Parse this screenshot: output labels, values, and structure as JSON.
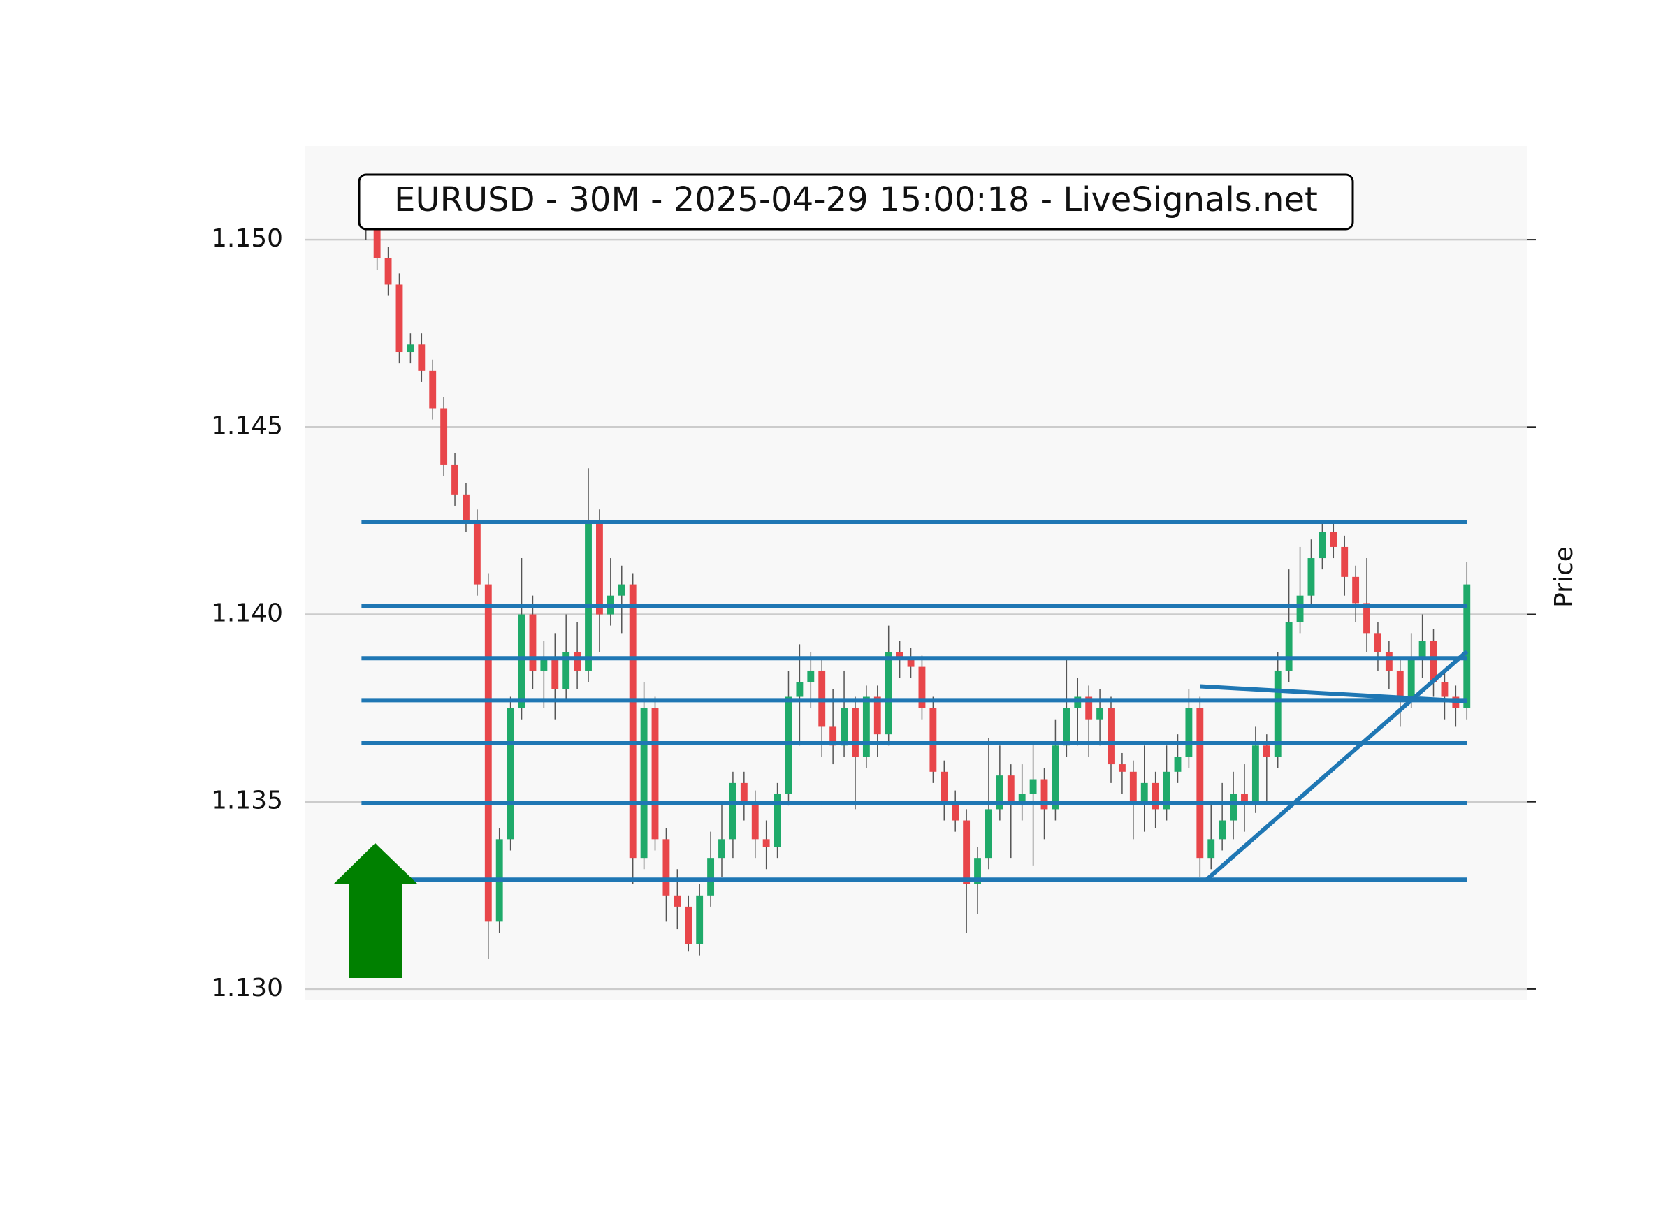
{
  "chart_data": {
    "type": "candlestick",
    "title": "EURUSD - 30M - 2025-04-29 15:00:18 - LiveSignals.net",
    "y_label": "Price",
    "xlim": [
      -5.45,
      104.45
    ],
    "ylim": [
      1.1297,
      1.1525
    ],
    "yticks": [
      {
        "value": 1.13,
        "label": "1.130"
      },
      1.135,
      {
        "value": 1.14,
        "label": "1.140"
      },
      1.145,
      {
        "value": 1.15,
        "label": "1.150"
      }
    ],
    "grid": true,
    "up_color": "#1faa6a",
    "down_color": "#e8464a",
    "open": [
      1.1505,
      1.1503,
      1.1495,
      1.1488,
      1.147,
      1.1472,
      1.1465,
      1.1455,
      1.144,
      1.1432,
      1.1425,
      1.1408,
      1.1318,
      1.134,
      1.1375,
      1.14,
      1.1385,
      1.1388,
      1.138,
      1.139,
      1.1385,
      1.1425,
      1.14,
      1.1405,
      1.1408,
      1.1335,
      1.1375,
      1.134,
      1.1325,
      1.1322,
      1.1312,
      1.1325,
      1.1335,
      1.134,
      1.1355,
      1.135,
      1.134,
      1.1338,
      1.1352,
      1.1378,
      1.1382,
      1.1385,
      1.137,
      1.1365,
      1.1375,
      1.1362,
      1.1378,
      1.1368,
      1.139,
      1.1388,
      1.1386,
      1.1375,
      1.1358,
      1.135,
      1.1345,
      1.1328,
      1.1335,
      1.1348,
      1.1357,
      1.135,
      1.1352,
      1.1356,
      1.1348,
      1.1365,
      1.1375,
      1.1378,
      1.1372,
      1.1375,
      1.136,
      1.1358,
      1.135,
      1.1355,
      1.1348,
      1.1358,
      1.1362,
      1.1375,
      1.1335,
      1.134,
      1.1345,
      1.1352,
      1.135,
      1.1365,
      1.1362,
      1.1385,
      1.1398,
      1.1405,
      1.1415,
      1.1422,
      1.1418,
      1.141,
      1.1403,
      1.1395,
      1.139,
      1.1385,
      1.1378,
      1.1388,
      1.1393,
      1.1382,
      1.1378,
      1.1375
    ],
    "high": [
      1.1508,
      1.1506,
      1.1498,
      1.1491,
      1.1475,
      1.1475,
      1.1468,
      1.1458,
      1.1443,
      1.1435,
      1.1428,
      1.1411,
      1.1343,
      1.1378,
      1.1415,
      1.1405,
      1.1393,
      1.1395,
      1.14,
      1.1398,
      1.1439,
      1.1428,
      1.1415,
      1.1413,
      1.1411,
      1.1382,
      1.1378,
      1.1343,
      1.1332,
      1.1325,
      1.1328,
      1.1342,
      1.135,
      1.1358,
      1.1358,
      1.1353,
      1.1345,
      1.1355,
      1.1385,
      1.1392,
      1.139,
      1.1388,
      1.138,
      1.1385,
      1.1378,
      1.1381,
      1.1381,
      1.1397,
      1.1393,
      1.1391,
      1.1389,
      1.1378,
      1.1361,
      1.1353,
      1.1348,
      1.1338,
      1.1367,
      1.1365,
      1.136,
      1.136,
      1.1366,
      1.1359,
      1.1372,
      1.1388,
      1.1383,
      1.1381,
      1.138,
      1.1378,
      1.1363,
      1.1361,
      1.1365,
      1.1358,
      1.1365,
      1.1368,
      1.138,
      1.1378,
      1.135,
      1.1355,
      1.1358,
      1.136,
      1.137,
      1.1368,
      1.139,
      1.1412,
      1.1418,
      1.142,
      1.1425,
      1.1425,
      1.1421,
      1.1413,
      1.1415,
      1.1398,
      1.1393,
      1.1388,
      1.1395,
      1.14,
      1.1396,
      1.1385,
      1.1381,
      1.1414
    ],
    "low": [
      1.15,
      1.1492,
      1.1485,
      1.1467,
      1.1467,
      1.1462,
      1.1452,
      1.1437,
      1.1429,
      1.1422,
      1.1405,
      1.1308,
      1.1315,
      1.1337,
      1.1372,
      1.138,
      1.1375,
      1.1372,
      1.1377,
      1.138,
      1.1382,
      1.139,
      1.1397,
      1.1395,
      1.1328,
      1.1332,
      1.1337,
      1.1318,
      1.1316,
      1.131,
      1.1309,
      1.1322,
      1.133,
      1.1335,
      1.1345,
      1.1335,
      1.1332,
      1.1335,
      1.1349,
      1.1365,
      1.1375,
      1.1362,
      1.136,
      1.1362,
      1.1348,
      1.1359,
      1.1362,
      1.1365,
      1.1383,
      1.1383,
      1.1372,
      1.1355,
      1.1345,
      1.1342,
      1.1315,
      1.132,
      1.1332,
      1.1345,
      1.1335,
      1.1345,
      1.1333,
      1.134,
      1.1345,
      1.1362,
      1.1365,
      1.1362,
      1.1365,
      1.1355,
      1.1352,
      1.134,
      1.1342,
      1.1343,
      1.1345,
      1.1355,
      1.1359,
      1.133,
      1.1332,
      1.1337,
      1.134,
      1.1342,
      1.1347,
      1.135,
      1.1359,
      1.1382,
      1.1395,
      1.1402,
      1.1412,
      1.1415,
      1.1405,
      1.1398,
      1.139,
      1.1385,
      1.138,
      1.137,
      1.1375,
      1.1383,
      1.1378,
      1.1372,
      1.137,
      1.1372
    ],
    "close": [
      1.1503,
      1.1495,
      1.1488,
      1.147,
      1.1472,
      1.1465,
      1.1455,
      1.144,
      1.1432,
      1.1425,
      1.1408,
      1.1318,
      1.134,
      1.1375,
      1.14,
      1.1385,
      1.1388,
      1.138,
      1.139,
      1.1385,
      1.1425,
      1.14,
      1.1405,
      1.1408,
      1.1335,
      1.1375,
      1.134,
      1.1325,
      1.1322,
      1.1312,
      1.1325,
      1.1335,
      1.134,
      1.1355,
      1.135,
      1.134,
      1.1338,
      1.1352,
      1.1378,
      1.1382,
      1.1385,
      1.137,
      1.1365,
      1.1375,
      1.1362,
      1.1378,
      1.1368,
      1.139,
      1.1388,
      1.1386,
      1.1375,
      1.1358,
      1.135,
      1.1345,
      1.1328,
      1.1335,
      1.1348,
      1.1357,
      1.135,
      1.1352,
      1.1356,
      1.1348,
      1.1365,
      1.1375,
      1.1378,
      1.1372,
      1.1375,
      1.136,
      1.1358,
      1.135,
      1.1355,
      1.1348,
      1.1358,
      1.1362,
      1.1375,
      1.1335,
      1.134,
      1.1345,
      1.1352,
      1.135,
      1.1365,
      1.1362,
      1.1385,
      1.1398,
      1.1405,
      1.1415,
      1.1422,
      1.1418,
      1.141,
      1.1403,
      1.1395,
      1.139,
      1.1385,
      1.1378,
      1.1388,
      1.1393,
      1.1382,
      1.1378,
      1.1375,
      1.1408
    ],
    "line_color": "#1f77b4",
    "levels": [
      {
        "y": 1.14247,
        "x": [
          -0.4,
          99
        ]
      },
      {
        "y": 1.14022,
        "x": [
          -0.4,
          99
        ]
      },
      {
        "y": 1.13883,
        "x": [
          -0.4,
          99
        ]
      },
      {
        "y": 1.13771,
        "x": [
          -0.4,
          99
        ]
      },
      {
        "y": 1.13656,
        "x": [
          -0.4,
          99
        ]
      },
      {
        "y": 1.13497,
        "x": [
          -0.4,
          99
        ]
      },
      {
        "y": 1.13292,
        "x": [
          4,
          99
        ]
      }
    ],
    "trendlines": [
      {
        "x": [
          75,
          99
        ],
        "y": [
          1.13808,
          1.13768
        ]
      },
      {
        "x": [
          75.6,
          99
        ],
        "y": [
          1.13292,
          1.13901
        ]
      }
    ]
  }
}
